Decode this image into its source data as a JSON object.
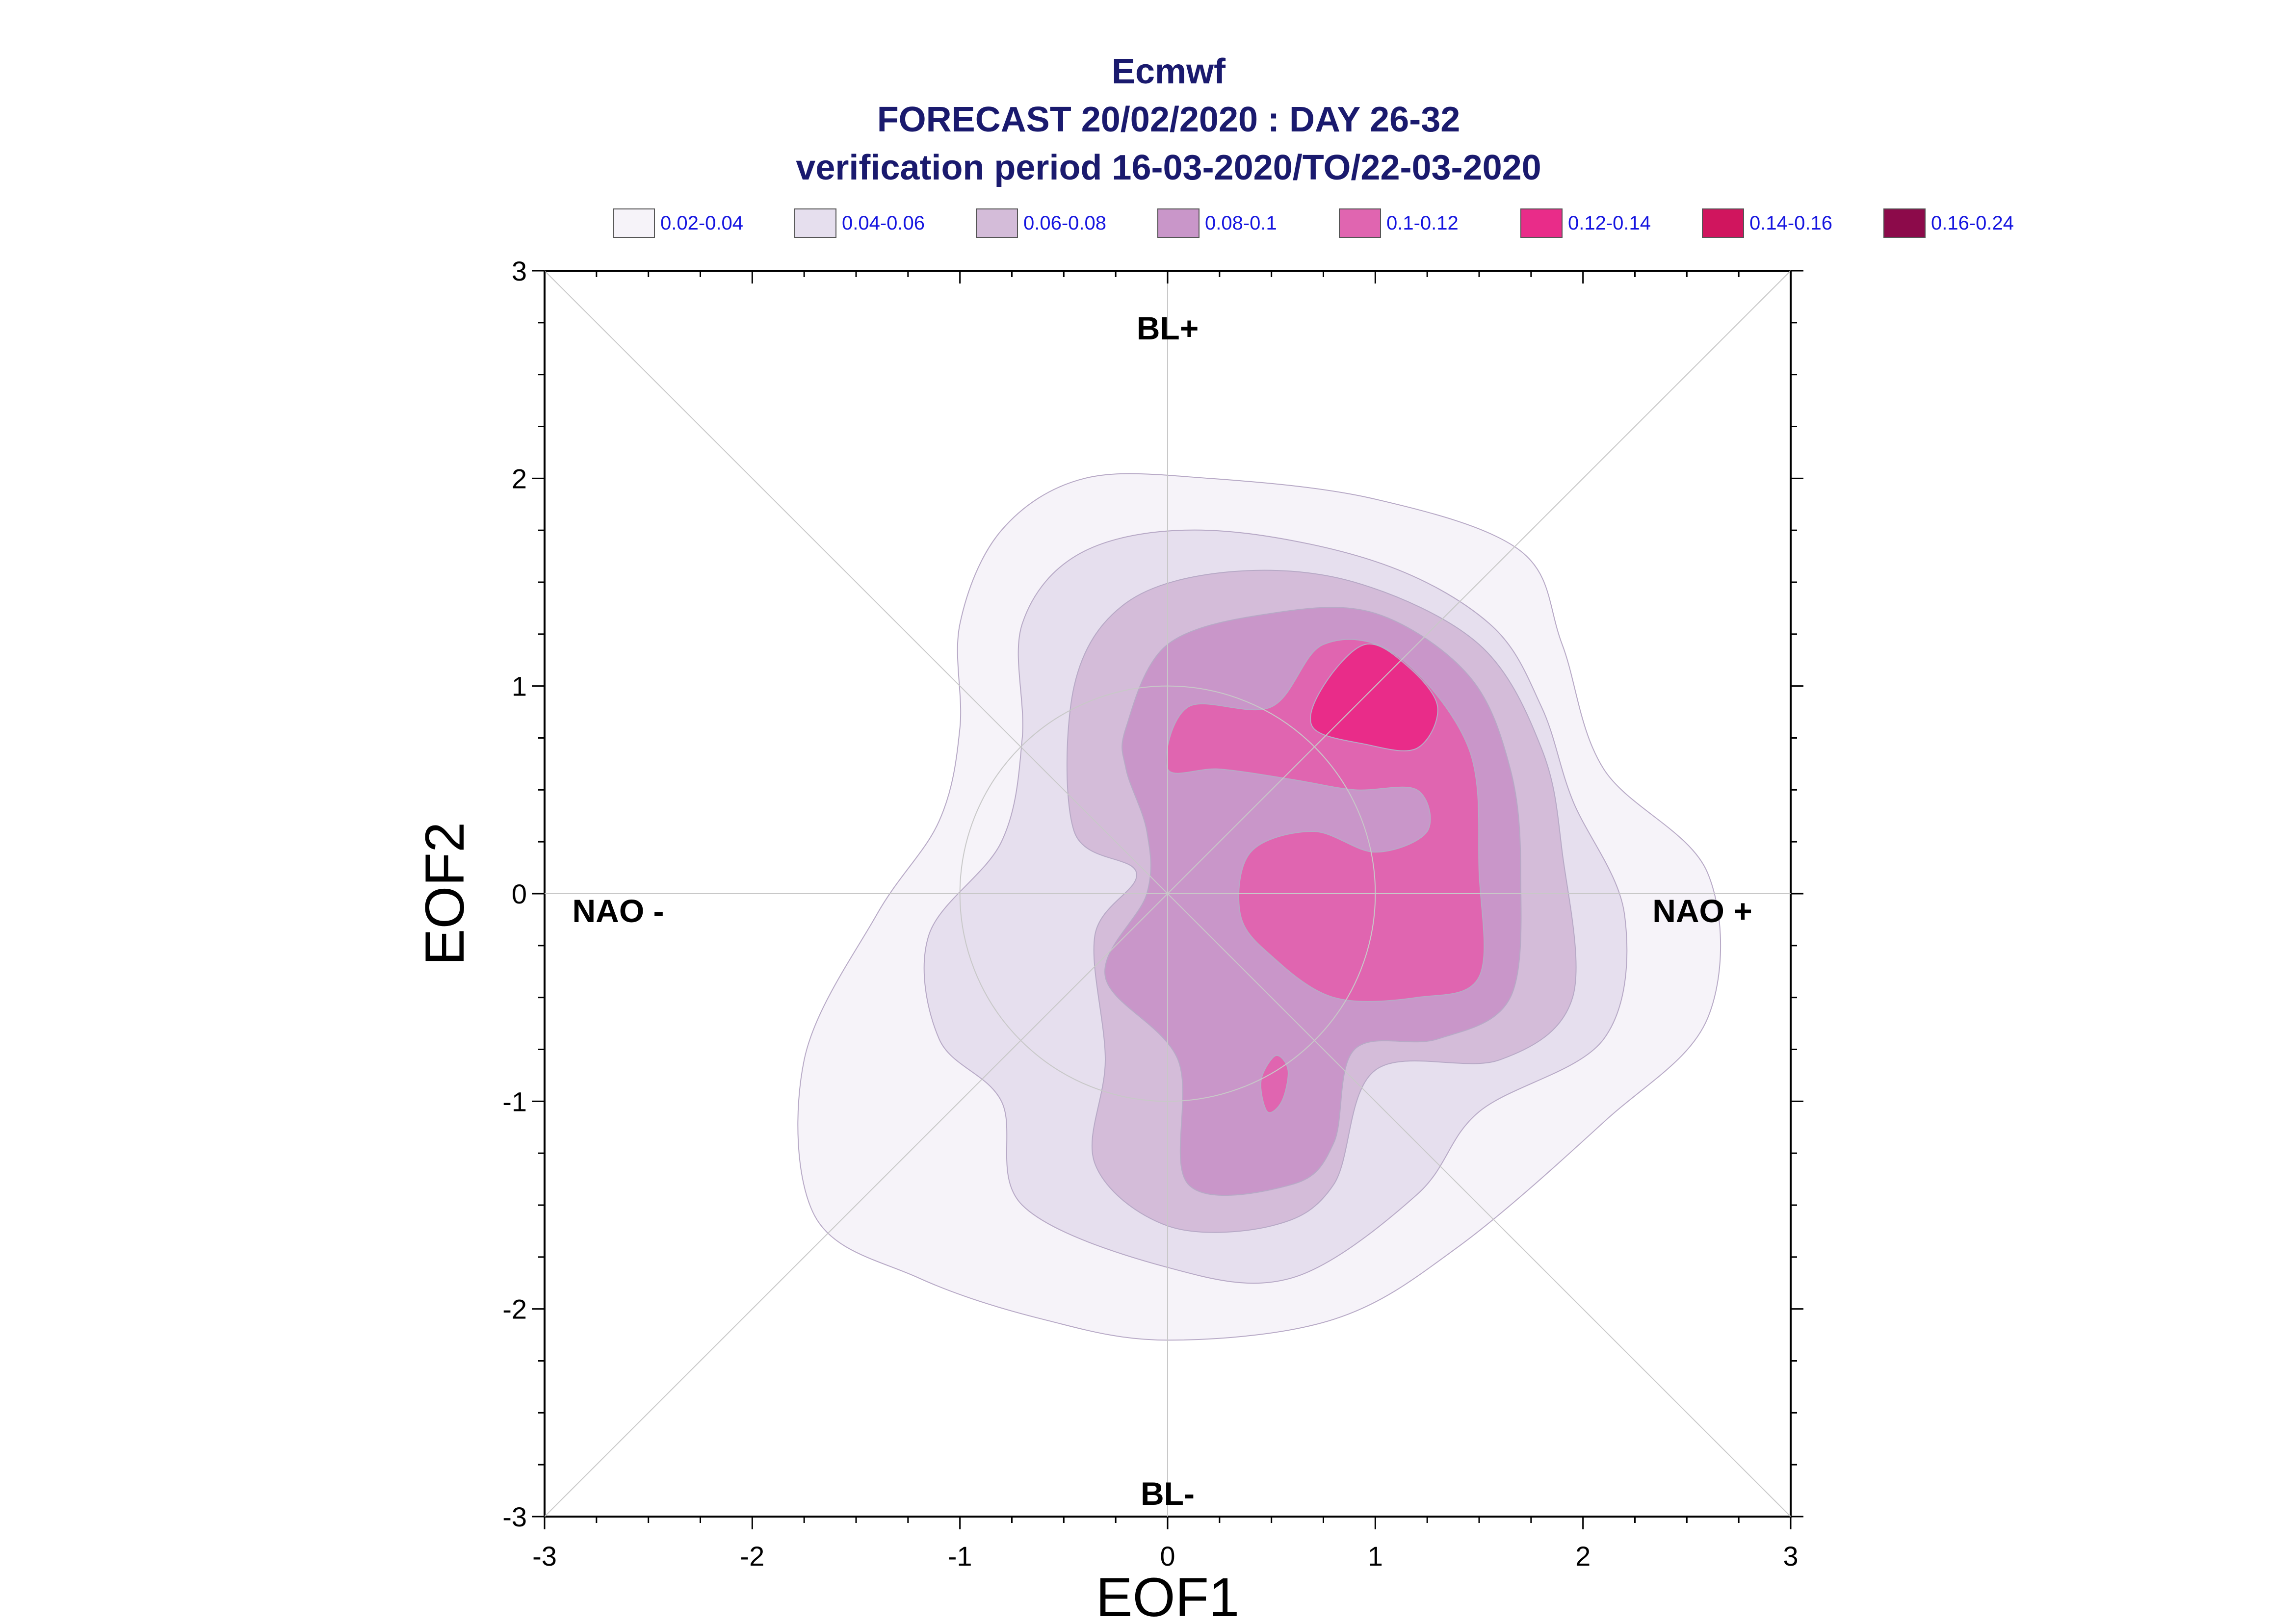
{
  "chart_data": {
    "type": "contour",
    "title_lines": [
      "Ecmwf",
      "FORECAST 20/02/2020 : DAY 26-32",
      "verification period 16-03-2020/TO/22-03-2020"
    ],
    "xlabel": "EOF1",
    "ylabel": "EOF2",
    "xlim": [
      -3,
      3
    ],
    "ylim": [
      -3,
      3
    ],
    "x_ticks": [
      "-3",
      "-2",
      "-1",
      "0",
      "1",
      "2",
      "3"
    ],
    "y_ticks": [
      "-3",
      "-2",
      "-1",
      "0",
      "1",
      "2",
      "3"
    ],
    "quadrant_labels": {
      "top": "BL+",
      "bottom": "BL-",
      "left": "NAO -",
      "right": "NAO +"
    },
    "legend": [
      {
        "label": "0.02-0.04",
        "color": "#f6f3f9"
      },
      {
        "label": "0.04-0.06",
        "color": "#e6dfee"
      },
      {
        "label": "0.06-0.08",
        "color": "#d4bcd9"
      },
      {
        "label": "0.08-0.1",
        "color": "#c996c9"
      },
      {
        "label": "0.1-0.12",
        "color": "#e065b0"
      },
      {
        "label": "0.12-0.14",
        "color": "#e92c89"
      },
      {
        "label": "0.14-0.16",
        "color": "#d0155e"
      },
      {
        "label": "0.16-0.24",
        "color": "#8c0a4a"
      }
    ],
    "reference_circle_radius": 1,
    "contours": [
      {
        "level": "0.02-0.04",
        "points": [
          [
            -1.0,
            1.3
          ],
          [
            -0.8,
            1.75
          ],
          [
            -0.4,
            2.0
          ],
          [
            0.2,
            2.0
          ],
          [
            1.0,
            1.9
          ],
          [
            1.7,
            1.65
          ],
          [
            1.9,
            1.2
          ],
          [
            2.1,
            0.6
          ],
          [
            2.6,
            0.1
          ],
          [
            2.6,
            -0.6
          ],
          [
            2.1,
            -1.1
          ],
          [
            1.4,
            -1.7
          ],
          [
            0.8,
            -2.05
          ],
          [
            0.0,
            -2.15
          ],
          [
            -0.6,
            -2.05
          ],
          [
            -1.2,
            -1.85
          ],
          [
            -1.7,
            -1.55
          ],
          [
            -1.75,
            -0.8
          ],
          [
            -1.4,
            -0.1
          ],
          [
            -1.1,
            0.35
          ],
          [
            -1.0,
            0.8
          ]
        ]
      },
      {
        "level": "0.04-0.06",
        "points": [
          [
            -0.7,
            1.3
          ],
          [
            -0.4,
            1.65
          ],
          [
            0.2,
            1.75
          ],
          [
            1.0,
            1.6
          ],
          [
            1.55,
            1.3
          ],
          [
            1.8,
            0.9
          ],
          [
            1.95,
            0.45
          ],
          [
            2.2,
            -0.1
          ],
          [
            2.1,
            -0.7
          ],
          [
            1.5,
            -1.05
          ],
          [
            1.2,
            -1.45
          ],
          [
            0.6,
            -1.85
          ],
          [
            0.0,
            -1.8
          ],
          [
            -0.7,
            -1.5
          ],
          [
            -0.8,
            -1.0
          ],
          [
            -1.1,
            -0.7
          ],
          [
            -1.15,
            -0.2
          ],
          [
            -0.8,
            0.25
          ],
          [
            -0.7,
            0.75
          ]
        ]
      },
      {
        "level": "0.06-0.08",
        "points": [
          [
            -0.45,
            1.0
          ],
          [
            -0.2,
            1.4
          ],
          [
            0.3,
            1.55
          ],
          [
            0.9,
            1.5
          ],
          [
            1.5,
            1.2
          ],
          [
            1.8,
            0.7
          ],
          [
            1.9,
            0.2
          ],
          [
            1.95,
            -0.5
          ],
          [
            1.6,
            -0.8
          ],
          [
            1.0,
            -0.85
          ],
          [
            0.8,
            -1.4
          ],
          [
            0.5,
            -1.6
          ],
          [
            0.0,
            -1.6
          ],
          [
            -0.35,
            -1.3
          ],
          [
            -0.3,
            -0.8
          ],
          [
            -0.35,
            -0.2
          ],
          [
            -0.15,
            0.1
          ],
          [
            -0.45,
            0.3
          ]
        ]
      },
      {
        "level": "0.08-0.1",
        "points": [
          [
            -0.2,
            0.8
          ],
          [
            0.0,
            1.2
          ],
          [
            0.5,
            1.35
          ],
          [
            1.0,
            1.35
          ],
          [
            1.45,
            1.05
          ],
          [
            1.65,
            0.6
          ],
          [
            1.7,
            0.1
          ],
          [
            1.65,
            -0.5
          ],
          [
            1.3,
            -0.7
          ],
          [
            0.9,
            -0.75
          ],
          [
            0.8,
            -1.2
          ],
          [
            0.6,
            -1.4
          ],
          [
            0.1,
            -1.4
          ],
          [
            0.05,
            -0.8
          ],
          [
            -0.3,
            -0.4
          ],
          [
            -0.1,
            0.0
          ],
          [
            -0.1,
            0.3
          ],
          [
            -0.2,
            0.6
          ]
        ]
      },
      {
        "level": "0.1-0.12",
        "points": [
          [
            0.0,
            0.6
          ],
          [
            0.1,
            0.9
          ],
          [
            0.5,
            0.9
          ],
          [
            0.75,
            1.2
          ],
          [
            1.1,
            1.15
          ],
          [
            1.45,
            0.7
          ],
          [
            1.5,
            0.1
          ],
          [
            1.5,
            -0.4
          ],
          [
            1.2,
            -0.5
          ],
          [
            0.8,
            -0.5
          ],
          [
            0.5,
            -0.3
          ],
          [
            0.35,
            -0.1
          ],
          [
            0.4,
            0.2
          ],
          [
            0.7,
            0.3
          ],
          [
            1.0,
            0.2
          ],
          [
            1.25,
            0.3
          ],
          [
            1.2,
            0.5
          ],
          [
            0.9,
            0.5
          ],
          [
            0.6,
            0.55
          ],
          [
            0.25,
            0.6
          ]
        ]
      },
      {
        "level": "0.1-0.12",
        "points": [
          [
            0.45,
            -0.9
          ],
          [
            0.52,
            -0.78
          ],
          [
            0.58,
            -0.85
          ],
          [
            0.55,
            -1.0
          ],
          [
            0.48,
            -1.05
          ]
        ]
      },
      {
        "level": "0.12-0.14",
        "points": [
          [
            0.7,
            0.8
          ],
          [
            0.75,
            1.0
          ],
          [
            0.95,
            1.2
          ],
          [
            1.15,
            1.1
          ],
          [
            1.3,
            0.9
          ],
          [
            1.2,
            0.7
          ],
          [
            0.95,
            0.72
          ]
        ]
      }
    ]
  }
}
